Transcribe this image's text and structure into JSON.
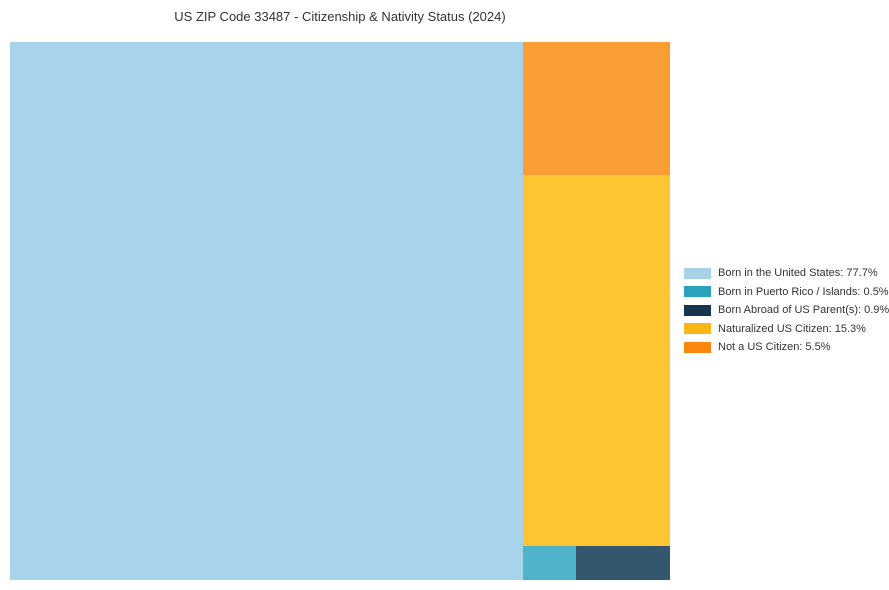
{
  "page": {
    "background_color": "#ffffff",
    "text_color": "#333333"
  },
  "chart_data": {
    "type": "treemap",
    "title": "US ZIP Code 33487 - Citizenship & Nativity Status (2024)",
    "categories": [
      "Born in the United States",
      "Born in Puerto Rico / Islands",
      "Born Abroad of US Parent(s)",
      "Naturalized US Citizen",
      "Not a US Citizen"
    ],
    "values": [
      77.7,
      0.5,
      0.9,
      15.3,
      5.5
    ],
    "unit": "%",
    "legend_position": "right",
    "block_colors": [
      "#a7d4eb",
      "#4fb3c9",
      "#34576e",
      "#fec431",
      "#fa9e33"
    ],
    "legend_colors": [
      "#a8d2e8",
      "#2aa1bd",
      "#17344d",
      "#fdb714",
      "#f8860f"
    ]
  },
  "legend": {
    "items": [
      {
        "label": "Born in the United States: 77.7%",
        "color": "#a8d2e8"
      },
      {
        "label": "Born in Puerto Rico / Islands: 0.5%",
        "color": "#2aa1bd"
      },
      {
        "label": "Born Abroad of US Parent(s): 0.9%",
        "color": "#17344d"
      },
      {
        "label": "Naturalized US Citizen: 15.3%",
        "color": "#fdb714"
      },
      {
        "label": "Not a US Citizen: 5.5%",
        "color": "#f8860f"
      }
    ]
  }
}
